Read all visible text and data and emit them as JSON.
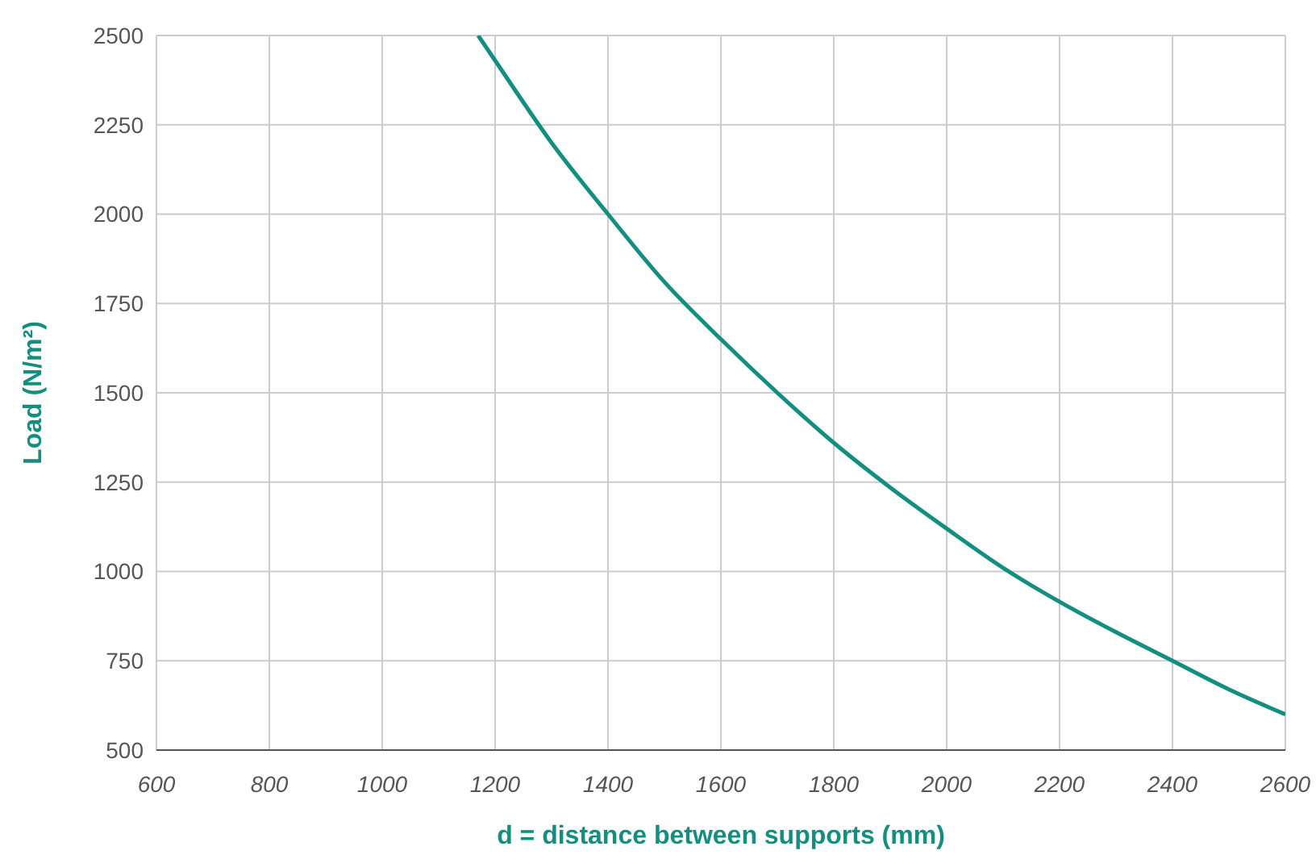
{
  "chart_data": {
    "type": "line",
    "xlabel": "d = distance between supports (mm)",
    "ylabel": "Load (N/m²)",
    "xlim": [
      600,
      2600
    ],
    "xticks": [
      600,
      800,
      1000,
      1200,
      1400,
      1600,
      1800,
      2000,
      2200,
      2400,
      2600
    ],
    "ylim": [
      500,
      2500
    ],
    "yticks": [
      500,
      750,
      1000,
      1250,
      1500,
      1750,
      2000,
      2250,
      2500
    ],
    "grid": true,
    "marker": "none",
    "line_style": "solid",
    "series": [
      {
        "color": "#138f80",
        "x": [
          1170,
          1200,
          1300,
          1400,
          1500,
          1600,
          1700,
          1800,
          1900,
          2000,
          2100,
          2200,
          2300,
          2400,
          2500,
          2600
        ],
        "values": [
          2500,
          2430,
          2200,
          2000,
          1810,
          1650,
          1500,
          1360,
          1235,
          1120,
          1010,
          915,
          830,
          750,
          670,
          600
        ]
      }
    ]
  }
}
